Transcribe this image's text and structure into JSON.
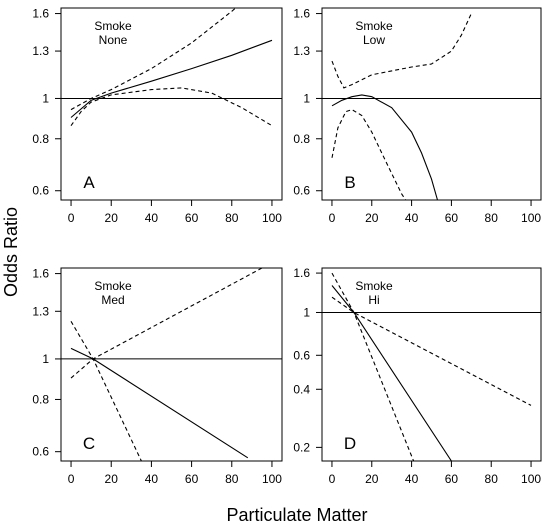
{
  "chart_data": {
    "type": "line",
    "xlabel": "Particulate Matter",
    "ylabel": "Odds Ratio",
    "panels": [
      {
        "label": "A",
        "annotation": [
          "Smoke",
          "None"
        ],
        "xlim": [
          -5,
          105
        ],
        "xticks": [
          0,
          20,
          40,
          60,
          80,
          100
        ],
        "ylim": [
          0.57,
          1.65
        ],
        "yticks": [
          {
            "v": 0.6,
            "label": "0.6"
          },
          {
            "v": 0.8,
            "label": "0.8"
          },
          {
            "v": 1.0,
            "label": "1"
          },
          {
            "v": 1.3,
            "label": "1.3"
          },
          {
            "v": 1.6,
            "label": "1.6"
          }
        ],
        "reference_y": 1.0,
        "series": [
          {
            "style": "solid",
            "points": [
              [
                0,
                0.9
              ],
              [
                10,
                0.99
              ],
              [
                20,
                1.03
              ],
              [
                40,
                1.1
              ],
              [
                60,
                1.18
              ],
              [
                80,
                1.27
              ],
              [
                100,
                1.38
              ]
            ]
          },
          {
            "style": "dashed",
            "points": [
              [
                0,
                0.94
              ],
              [
                10,
                1.0
              ],
              [
                20,
                1.05
              ],
              [
                40,
                1.18
              ],
              [
                60,
                1.36
              ],
              [
                80,
                1.62
              ],
              [
                85,
                1.7
              ]
            ]
          },
          {
            "style": "dashed",
            "points": [
              [
                0,
                0.86
              ],
              [
                5,
                0.93
              ],
              [
                10,
                0.98
              ],
              [
                20,
                1.02
              ],
              [
                40,
                1.05
              ],
              [
                55,
                1.06
              ],
              [
                70,
                1.03
              ],
              [
                85,
                0.95
              ],
              [
                100,
                0.86
              ]
            ]
          }
        ]
      },
      {
        "label": "B",
        "annotation": [
          "Smoke",
          "Low"
        ],
        "xlim": [
          -5,
          105
        ],
        "xticks": [
          0,
          20,
          40,
          60,
          80,
          100
        ],
        "ylim": [
          0.57,
          1.65
        ],
        "yticks": [
          {
            "v": 0.6,
            "label": "0.6"
          },
          {
            "v": 0.8,
            "label": "0.8"
          },
          {
            "v": 1.0,
            "label": "1"
          },
          {
            "v": 1.3,
            "label": "1.3"
          },
          {
            "v": 1.6,
            "label": "1.6"
          }
        ],
        "reference_y": 1.0,
        "series": [
          {
            "style": "solid",
            "points": [
              [
                0,
                0.96
              ],
              [
                5,
                0.99
              ],
              [
                10,
                1.01
              ],
              [
                15,
                1.02
              ],
              [
                20,
                1.01
              ],
              [
                30,
                0.95
              ],
              [
                40,
                0.83
              ],
              [
                45,
                0.74
              ],
              [
                50,
                0.64
              ],
              [
                53,
                0.57
              ]
            ]
          },
          {
            "style": "dashed",
            "points": [
              [
                0,
                1.23
              ],
              [
                3,
                1.13
              ],
              [
                6,
                1.06
              ],
              [
                10,
                1.08
              ],
              [
                20,
                1.14
              ],
              [
                40,
                1.19
              ],
              [
                50,
                1.21
              ],
              [
                60,
                1.3
              ],
              [
                65,
                1.42
              ],
              [
                70,
                1.6
              ]
            ]
          },
          {
            "style": "dashed",
            "points": [
              [
                0,
                0.72
              ],
              [
                3,
                0.85
              ],
              [
                7,
                0.93
              ],
              [
                10,
                0.94
              ],
              [
                15,
                0.91
              ],
              [
                20,
                0.83
              ],
              [
                25,
                0.74
              ],
              [
                30,
                0.66
              ],
              [
                35,
                0.59
              ],
              [
                37,
                0.57
              ]
            ]
          }
        ]
      },
      {
        "label": "C",
        "annotation": [
          "Smoke",
          "Med"
        ],
        "xlim": [
          -5,
          105
        ],
        "xticks": [
          0,
          20,
          40,
          60,
          80,
          100
        ],
        "ylim": [
          0.57,
          1.65
        ],
        "yticks": [
          {
            "v": 0.6,
            "label": "0.6"
          },
          {
            "v": 0.8,
            "label": "0.8"
          },
          {
            "v": 1.0,
            "label": "1"
          },
          {
            "v": 1.3,
            "label": "1.3"
          },
          {
            "v": 1.6,
            "label": "1.6"
          }
        ],
        "reference_y": 1.0,
        "series": [
          {
            "style": "solid",
            "points": [
              [
                0,
                1.06
              ],
              [
                11,
                1.0
              ],
              [
                88,
                0.58
              ]
            ]
          },
          {
            "style": "dashed",
            "points": [
              [
                0,
                1.23
              ],
              [
                11,
                1.0
              ],
              [
                35,
                0.57
              ]
            ]
          },
          {
            "style": "dashed",
            "points": [
              [
                0,
                0.9
              ],
              [
                11,
                1.0
              ],
              [
                100,
                1.7
              ]
            ]
          }
        ]
      },
      {
        "label": "D",
        "annotation": [
          "Smoke",
          "Hi"
        ],
        "xlim": [
          -5,
          105
        ],
        "xticks": [
          0,
          20,
          40,
          60,
          80,
          100
        ],
        "ylim": [
          0.17,
          1.7
        ],
        "yticks": [
          {
            "v": 0.2,
            "label": "0.2"
          },
          {
            "v": 0.4,
            "label": "0.4"
          },
          {
            "v": 0.6,
            "label": "0.6"
          },
          {
            "v": 1.0,
            "label": "1"
          },
          {
            "v": 1.6,
            "label": "1.6"
          }
        ],
        "reference_y": 1.0,
        "series": [
          {
            "style": "solid",
            "points": [
              [
                0,
                1.38
              ],
              [
                11,
                1.0
              ],
              [
                60,
                0.17
              ]
            ]
          },
          {
            "style": "dashed",
            "points": [
              [
                0,
                1.6
              ],
              [
                11,
                1.0
              ],
              [
                41,
                0.17
              ]
            ]
          },
          {
            "style": "dashed",
            "points": [
              [
                0,
                1.2
              ],
              [
                11,
                1.0
              ],
              [
                100,
                0.33
              ]
            ]
          }
        ]
      }
    ]
  }
}
